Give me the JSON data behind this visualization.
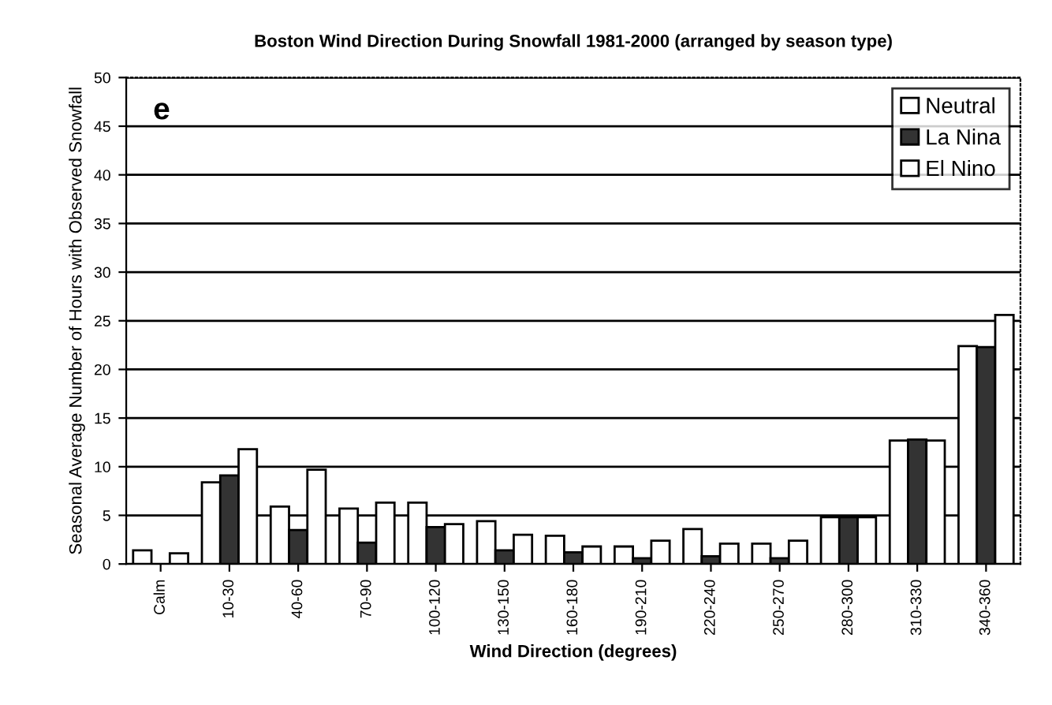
{
  "chart_data": {
    "type": "bar",
    "title": "Boston Wind Direction During Snowfall 1981-2000 (arranged by season type)",
    "xlabel": "Wind Direction (degrees)",
    "ylabel": "Seasonal Average Number of Hours with Observed Snowfall",
    "categories": [
      "Calm",
      "10-30",
      "40-60",
      "70-90",
      "100-120",
      "130-150",
      "160-180",
      "190-210",
      "220-240",
      "250-270",
      "280-300",
      "310-330",
      "340-360"
    ],
    "series": [
      {
        "name": "Neutral",
        "color": "#ffffff",
        "values": [
          1.4,
          8.4,
          5.9,
          5.7,
          6.3,
          4.4,
          2.9,
          1.8,
          3.6,
          2.1,
          4.8,
          12.7,
          22.4
        ]
      },
      {
        "name": "La Nina",
        "color": "#333333",
        "values": [
          null,
          9.1,
          3.5,
          2.2,
          3.8,
          1.4,
          1.2,
          0.6,
          0.8,
          0.6,
          4.8,
          12.8,
          22.3
        ]
      },
      {
        "name": "El Nino",
        "color": "#ffffff",
        "values": [
          1.1,
          11.8,
          9.7,
          6.3,
          4.1,
          3.0,
          1.8,
          2.4,
          2.1,
          2.4,
          4.8,
          12.7,
          25.6
        ]
      }
    ],
    "annotations": [
      "e"
    ],
    "ylim": [
      0,
      50
    ],
    "yticks": [
      0,
      5,
      10,
      15,
      20,
      25,
      30,
      35,
      40,
      45,
      50
    ],
    "grid": "y",
    "legend": "top right"
  }
}
